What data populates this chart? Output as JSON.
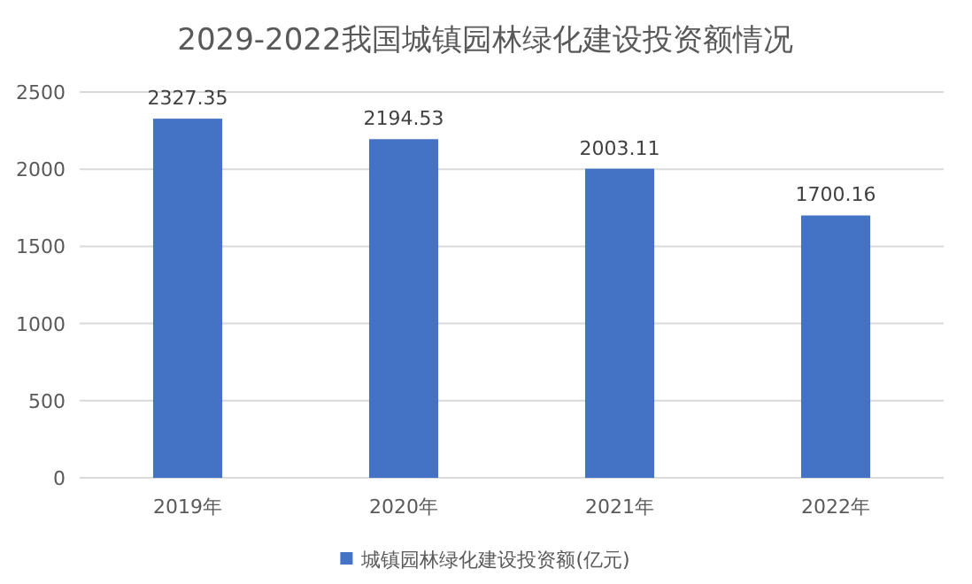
{
  "chart_data": {
    "type": "bar",
    "title": "2029-2022我国城镇园林绿化建设投资额情况",
    "categories": [
      "2019年",
      "2020年",
      "2021年",
      "2022年"
    ],
    "series": [
      {
        "name": "城镇园林绿化建设投资额(亿元)",
        "color": "#4472c4",
        "values": [
          2327.35,
          2194.53,
          2003.11,
          1700.16
        ]
      }
    ],
    "ylim": [
      0,
      2500
    ],
    "yticks": [
      0,
      500,
      1000,
      1500,
      2000,
      2500
    ],
    "grid": "y",
    "data_labels": true,
    "legend": "bottom"
  }
}
